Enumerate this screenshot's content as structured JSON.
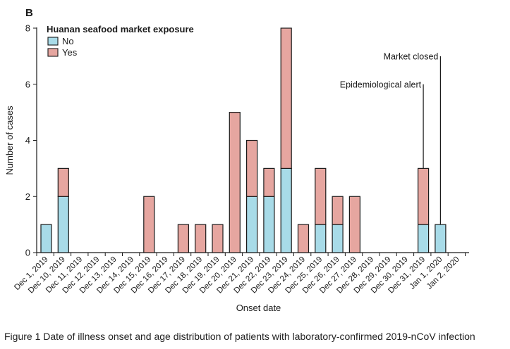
{
  "panel_label": "B",
  "caption": "Figure 1 Date of illness onset and age distribution of patients with laboratory-confirmed 2019-nCoV infection",
  "colors": {
    "no": "#a8dbe8",
    "yes": "#e6a6a0",
    "edge": "#1a1a1a"
  },
  "chart_data": {
    "type": "bar",
    "stacked": true,
    "title": "",
    "xlabel": "Onset date",
    "ylabel": "Number of cases",
    "ylim": [
      0,
      8
    ],
    "yticks": [
      0,
      2,
      4,
      6,
      8
    ],
    "grid": false,
    "legend": {
      "title": "Huanan seafood market exposure",
      "placement": "top-left",
      "entries": [
        "No",
        "Yes"
      ]
    },
    "categories": [
      "Dec 1, 2019",
      "Dec 10, 2019",
      "Dec 11, 2019",
      "Dec 12, 2019",
      "Dec 13, 2019",
      "Dec 14, 2019",
      "Dec 15, 2019",
      "Dec 16, 2019",
      "Dec 17, 2019",
      "Dec 18, 2019",
      "Dec 19, 2019",
      "Dec 20, 2019",
      "Dec 21, 2019",
      "Dec 22, 2019",
      "Dec 23, 2019",
      "Dec 24, 2019",
      "Dec 25, 2019",
      "Dec 26, 2019",
      "Dec 27, 2019",
      "Dec 28, 2019",
      "Dec 29, 2019",
      "Dec 30, 2019",
      "Dec 31, 2019",
      "Jan 1, 2020",
      "Jan 2, 2020"
    ],
    "series": [
      {
        "name": "No",
        "values": [
          1,
          2,
          0,
          0,
          0,
          0,
          0,
          0,
          0,
          0,
          0,
          0,
          2,
          2,
          3,
          0,
          1,
          1,
          0,
          0,
          0,
          0,
          1,
          1,
          0
        ]
      },
      {
        "name": "Yes",
        "values": [
          0,
          1,
          0,
          0,
          0,
          0,
          2,
          0,
          1,
          1,
          1,
          5,
          2,
          1,
          5,
          1,
          2,
          1,
          2,
          0,
          0,
          0,
          2,
          0,
          0
        ]
      }
    ],
    "annotations": [
      {
        "text": "Epidemiological alert",
        "category": "Dec 31, 2019",
        "y": 6
      },
      {
        "text": "Market closed",
        "category": "Jan 1, 2020",
        "y": 7
      }
    ]
  }
}
